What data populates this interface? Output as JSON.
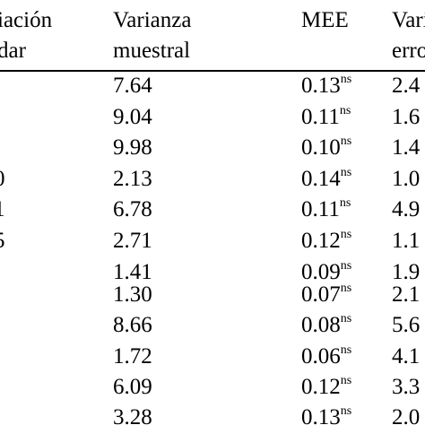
{
  "table": {
    "col_stub_header": [
      "iación",
      "dar"
    ],
    "col2_header": [
      "Varianza",
      "muestral"
    ],
    "col3_header": "MEE",
    "col4_header": [
      "Vari",
      "erro"
    ],
    "stub_cells": [
      "",
      "",
      "",
      "0",
      "1",
      "5",
      "",
      "",
      "",
      "",
      "",
      ""
    ],
    "rows": [
      {
        "varianza": "7.64",
        "mee": "0.13",
        "mee_sup": "ns",
        "col4": "2.4"
      },
      {
        "varianza": "9.04",
        "mee": "0.11",
        "mee_sup": "ns",
        "col4": "1.6"
      },
      {
        "varianza": "9.98",
        "mee": "0.10",
        "mee_sup": "ns",
        "col4": "1.4"
      },
      {
        "varianza": "2.13",
        "mee": "0.14",
        "mee_sup": "ns",
        "col4": "1.0"
      },
      {
        "varianza": "6.78",
        "mee": "0.11",
        "mee_sup": "ns",
        "col4": "4.9"
      },
      {
        "varianza": "2.71",
        "mee": "0.12",
        "mee_sup": "ns",
        "col4": "1.1"
      },
      {
        "varianza": "1.41",
        "mee": "0.09",
        "mee_sup": "ns",
        "col4": "1.9"
      },
      {
        "varianza": "1.30",
        "mee": "0.07",
        "mee_sup": "ns",
        "col4": "2.1"
      },
      {
        "varianza": "8.66",
        "mee": "0.08",
        "mee_sup": "ns",
        "col4": "5.6"
      },
      {
        "varianza": "1.72",
        "mee": "0.06",
        "mee_sup": "ns",
        "col4": "4.1"
      },
      {
        "varianza": "6.09",
        "mee": "0.12",
        "mee_sup": "ns",
        "col4": "3.3"
      },
      {
        "varianza": "3.28",
        "mee": "0.13",
        "mee_sup": "ns",
        "col4": "2.0"
      }
    ]
  }
}
